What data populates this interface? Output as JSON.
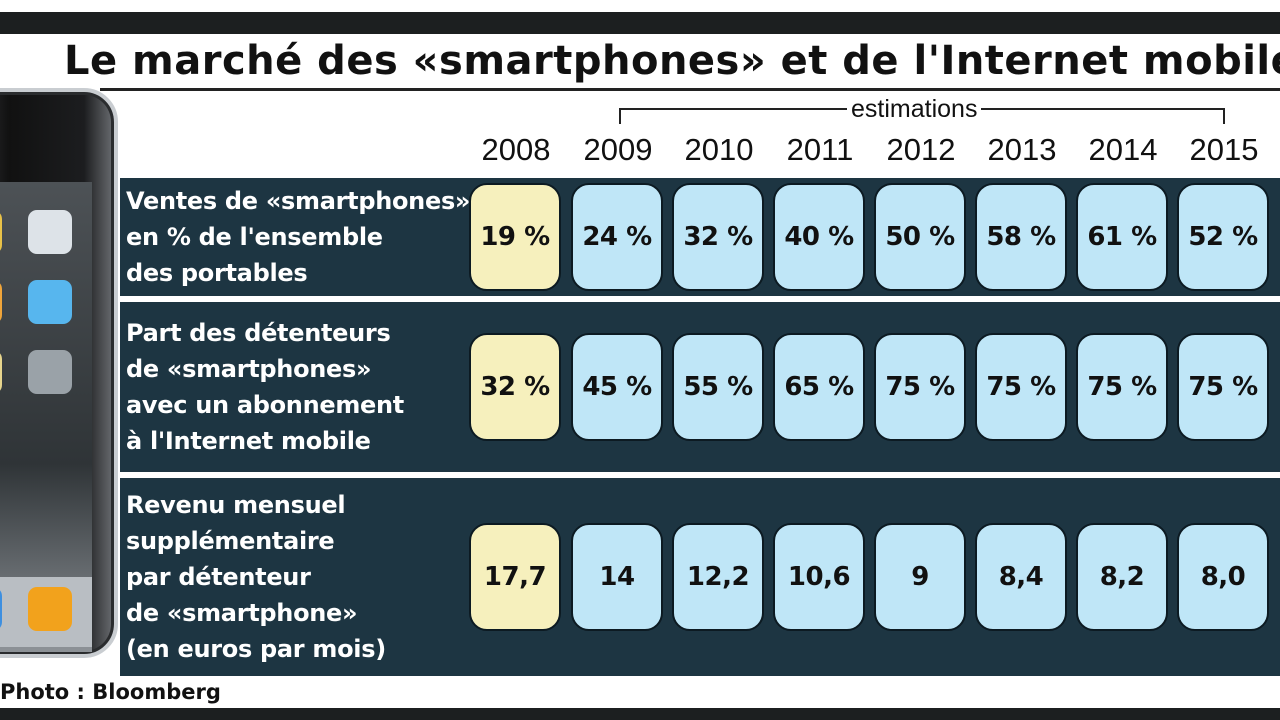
{
  "title": "Le marché des «smartphones» et de l'Internet mobile",
  "estimations_label": "estimations",
  "credit": "Photo : Bloomberg",
  "chart_data": {
    "type": "table",
    "title": "Le marché des «smartphones» et de l'Internet mobile",
    "columns": [
      "2008",
      "2009",
      "2010",
      "2011",
      "2012",
      "2013",
      "2014",
      "2015"
    ],
    "estimate_columns": [
      "2009",
      "2010",
      "2011",
      "2012",
      "2013",
      "2014",
      "2015"
    ],
    "rows": [
      {
        "label_lines": [
          "Ventes de «smartphones»",
          "en % de l'ensemble",
          "des portables"
        ],
        "values": [
          "19 %",
          "24 %",
          "32 %",
          "40 %",
          "50 %",
          "58 %",
          "61 %",
          "52 %"
        ]
      },
      {
        "label_lines": [
          "Part des détenteurs",
          "de «smartphones»",
          "avec un abonnement",
          "à l'Internet mobile"
        ],
        "values": [
          "32 %",
          "45 %",
          "55 %",
          "65 %",
          "75 %",
          "75 %",
          "75 %",
          "75 %"
        ]
      },
      {
        "label_lines": [
          "Revenu mensuel",
          "supplémentaire",
          "par détenteur",
          "de «smartphone»",
          "(en euros par mois)"
        ],
        "values": [
          "17,7",
          "14",
          "12,2",
          "10,6",
          "9",
          "8,4",
          "8,2",
          "8,0"
        ]
      }
    ],
    "colors": {
      "row_background": "#1d3542",
      "actual_cell": "#f6f0bd",
      "estimate_cell": "#bfe6f7"
    }
  }
}
